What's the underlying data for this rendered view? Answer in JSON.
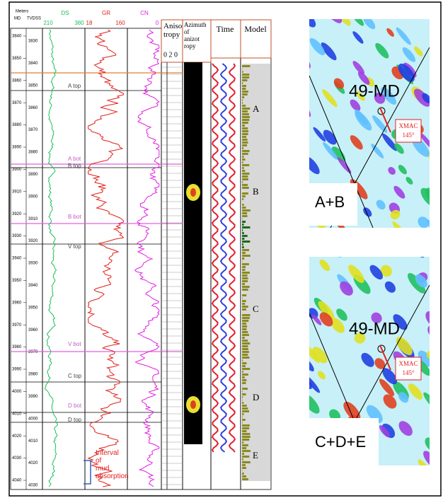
{
  "header": {
    "meters": "Meters",
    "md": "MD",
    "tvdss": "TVDSS",
    "ds": "DS",
    "ds_min": "210",
    "ds_max": "380",
    "gr": "GR",
    "gr_min": "18",
    "gr_max": "160",
    "cn": "CN",
    "cn_max": "0",
    "anisotropy": "Aniso tropy",
    "anisotropy_scale": "0 2 0",
    "azimuth": "Azimuth of anizot ropy",
    "time": "Time",
    "model": "Model"
  },
  "depth_md": [
    3840,
    3850,
    3860,
    3870,
    3880,
    3890,
    3900,
    3910,
    3920,
    3930,
    3940,
    3950,
    3960,
    3970,
    3980,
    3990,
    4000,
    4010,
    4020,
    4030,
    4040
  ],
  "depth_tvdss": [
    3830,
    3840,
    3850,
    3860,
    3870,
    3880,
    3890,
    3900,
    3910,
    3920,
    3930,
    3940,
    3950,
    3960,
    3970,
    3980,
    3990,
    4000,
    4010,
    4020,
    4030
  ],
  "tops": [
    "A top",
    "A bot",
    "B top",
    "B bot",
    "V top",
    "V bot",
    "C top",
    "D bot",
    "D top"
  ],
  "zones": [
    "A",
    "B",
    "C",
    "D",
    "E"
  ],
  "mud_note": "Interval of mud absorption",
  "maps": [
    {
      "well": "49-MD",
      "tool": "XMAC",
      "azimuth": "145°",
      "label": "A+B"
    },
    {
      "well": "49-MD",
      "tool": "XMAC",
      "azimuth": "145°",
      "label": "C+D+E"
    }
  ]
}
